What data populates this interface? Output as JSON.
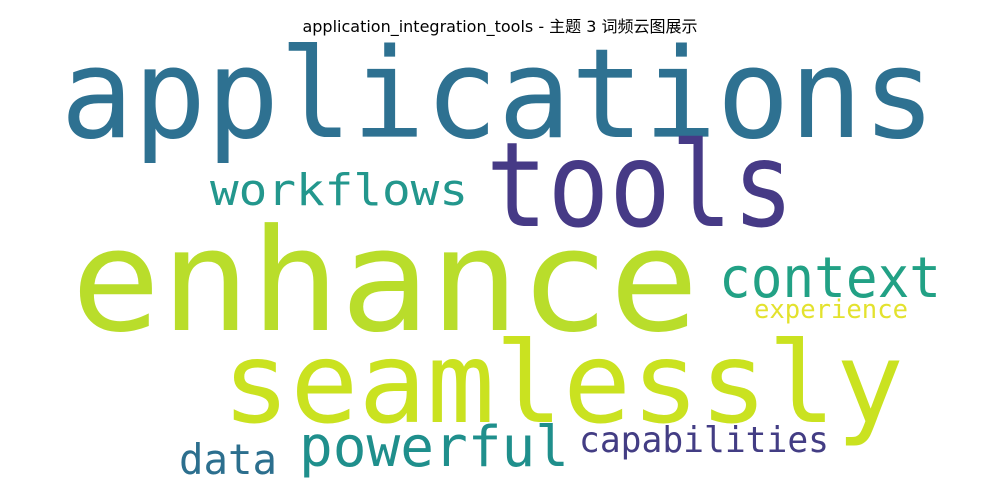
{
  "title": "application_integration_tools - 主题 3 词频云图展示",
  "words": [
    {
      "text": "applications",
      "color": "#2e7191"
    },
    {
      "text": "tools",
      "color": "#463a86"
    },
    {
      "text": "workflows",
      "color": "#23978d"
    },
    {
      "text": "enhance",
      "color": "#b9dd2b"
    },
    {
      "text": "context",
      "color": "#22a185"
    },
    {
      "text": "experience",
      "color": "#e3e22e"
    },
    {
      "text": "seamlessly",
      "color": "#cae220"
    },
    {
      "text": "powerful",
      "color": "#1f8f8c"
    },
    {
      "text": "capabilities",
      "color": "#433d84"
    },
    {
      "text": "data",
      "color": "#2c6f8e"
    }
  ]
}
